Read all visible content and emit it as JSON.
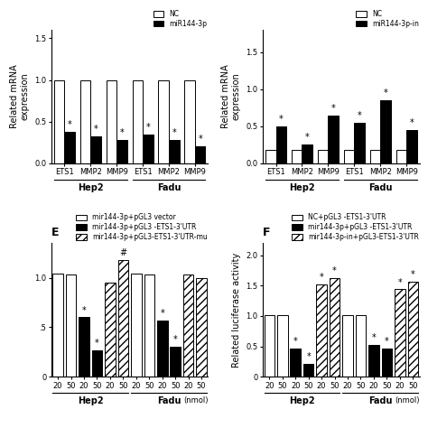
{
  "chart_data": [
    {
      "type": "bar",
      "ylabel": "Related mRNA\nexpression",
      "categories": [
        "ETS1",
        "MMP2",
        "MMP9",
        "ETS1",
        "MMP2",
        "MMP9"
      ],
      "groups": [
        {
          "label": "Hep2",
          "size": 3
        },
        {
          "label": "Fadu",
          "size": 3
        }
      ],
      "series": [
        {
          "name": "NC",
          "color": "white",
          "values": [
            1.0,
            1.0,
            1.0,
            1.0,
            1.0,
            1.0
          ]
        },
        {
          "name": "miR144-3p",
          "color": "black",
          "values": [
            0.38,
            0.32,
            0.28,
            0.35,
            0.28,
            0.2
          ],
          "annotations": [
            "*",
            "*",
            "*",
            "*",
            "*",
            "*"
          ]
        }
      ],
      "ylim": [
        0,
        1.6
      ],
      "yticks": [
        {
          "value": 0.0,
          "label": "0.0"
        },
        0.5,
        {
          "value": 1.0,
          "label": "1.0"
        },
        1.5
      ],
      "legend": "upper right"
    },
    {
      "type": "bar",
      "ylabel": "Related mRNA\nexpression",
      "categories": [
        "ETS1",
        "MMP2",
        "MMP9",
        "ETS1",
        "MMP2",
        "MMP9"
      ],
      "groups": [
        {
          "label": "Hep2",
          "size": 3
        },
        {
          "label": "Fadu",
          "size": 3
        }
      ],
      "series": [
        {
          "name": "NC",
          "color": "white",
          "values": [
            0.18,
            0.18,
            0.18,
            0.18,
            0.18,
            0.18
          ]
        },
        {
          "name": "miR144-3p-in",
          "color": "black",
          "values": [
            0.5,
            0.25,
            0.65,
            0.55,
            0.85,
            0.45
          ],
          "annotations": [
            "*",
            "*",
            "*",
            "*",
            "*",
            "*"
          ]
        }
      ],
      "ylim": [
        0,
        1.8
      ],
      "yticks": [
        {
          "value": 0.0,
          "label": "0.0"
        },
        0.5,
        {
          "value": 1.0,
          "label": "1.0"
        },
        1.5
      ],
      "legend": "upper right"
    },
    {
      "type": "bar",
      "title": "E",
      "xlabel": "(nmol)",
      "categories": [
        "20",
        "50",
        "20",
        "50",
        "20",
        "50",
        "20",
        "50",
        "20",
        "50",
        "20",
        "50"
      ],
      "groups": [
        {
          "label": "Hep2",
          "size": 6
        },
        {
          "label": "Fadu",
          "size": 6
        }
      ],
      "series": [
        {
          "name": "mir144-3p+pGL3 vector",
          "color": "white",
          "values": [
            1.04,
            1.03,
            null,
            null,
            null,
            null,
            1.04,
            1.03,
            null,
            null,
            null,
            null
          ]
        },
        {
          "name": "mir144-3p+pGL3 -ETS1-3'UTR",
          "color": "black",
          "values": [
            null,
            null,
            0.6,
            0.27,
            null,
            null,
            null,
            null,
            0.57,
            0.3,
            null,
            null
          ],
          "annotations": [
            null,
            null,
            "*",
            "*",
            null,
            null,
            null,
            null,
            "*",
            "*",
            null,
            null
          ]
        },
        {
          "name": "mir144-3p+pGL3-ETS1-3'UTR-mu",
          "color": "white",
          "values": [
            null,
            null,
            null,
            null,
            0.95,
            1.18,
            null,
            null,
            null,
            null,
            1.03,
            1.0
          ],
          "annotations": [
            null,
            null,
            null,
            null,
            null,
            "#",
            null,
            null,
            null,
            null,
            null,
            null
          ]
        }
      ],
      "ylim": [
        0,
        1.35
      ],
      "yticks": [
        {
          "value": 0.0,
          "label": "0"
        },
        {
          "value": 0.5,
          "label": ".5"
        },
        {
          "value": 1.0,
          "label": "1.0"
        }
      ],
      "legend": "upper right"
    },
    {
      "type": "bar",
      "title": "F",
      "xlabel": "(nmol)",
      "ylabel": "Related luciferase activity",
      "categories": [
        "20",
        "50",
        "20",
        "50",
        "20",
        "50",
        "20",
        "50",
        "20",
        "50",
        "20",
        "50"
      ],
      "groups": [
        {
          "label": "Hep2",
          "size": 6
        },
        {
          "label": "Fadu",
          "size": 6
        }
      ],
      "series": [
        {
          "name": "NC+pGL3 -ETS1-3'UTR",
          "color": "white",
          "values": [
            1.01,
            1.01,
            null,
            null,
            null,
            null,
            1.01,
            1.01,
            null,
            null,
            null,
            null
          ]
        },
        {
          "name": "mir144-3p+pGL3 -ETS1-3'UTR",
          "color": "black",
          "values": [
            null,
            null,
            0.47,
            0.21,
            null,
            null,
            null,
            null,
            0.52,
            0.47,
            null,
            null
          ],
          "annotations": [
            null,
            null,
            "*",
            "*",
            null,
            null,
            null,
            null,
            "*",
            "*",
            null,
            null
          ]
        },
        {
          "name": "mir144-3p-in+pGL3-ETS1-3'UTR",
          "color": "white",
          "values": [
            null,
            null,
            null,
            null,
            1.52,
            1.62,
            null,
            null,
            null,
            null,
            1.44,
            1.57
          ],
          "annotations": [
            null,
            null,
            null,
            null,
            "*",
            "*",
            null,
            null,
            null,
            null,
            "*",
            "*"
          ]
        }
      ],
      "ylim": [
        0,
        2.2
      ],
      "yticks": [
        0,
        0.5,
        {
          "value": 1.0,
          "label": "1.0"
        },
        1.5,
        {
          "value": 2.0,
          "label": "2.0"
        }
      ],
      "legend": "upper right"
    }
  ]
}
